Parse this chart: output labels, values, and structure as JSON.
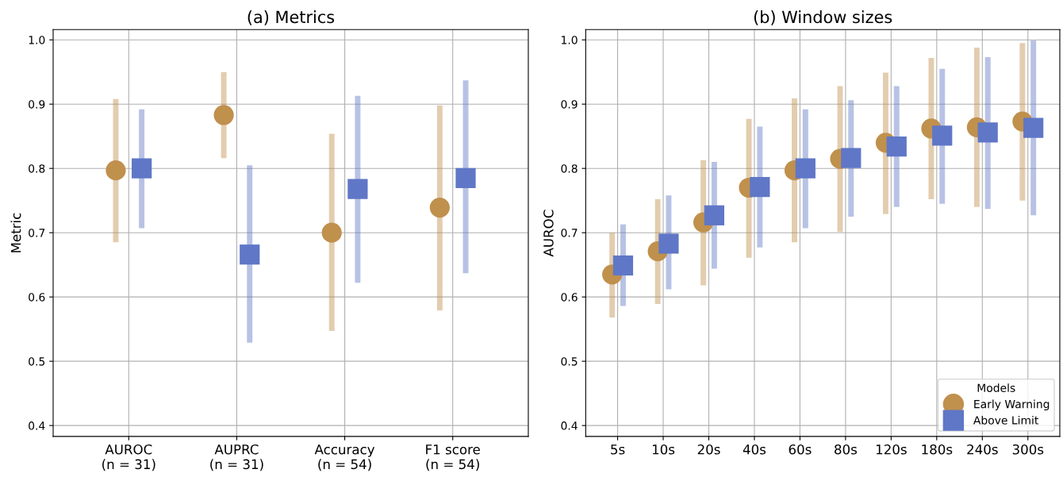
{
  "chart_data": [
    {
      "type": "scatter",
      "title": "(a) Metrics",
      "ylabel": "Metric",
      "categories": [
        "AUROC\n(n = 31)",
        "AUPRC\n(n = 31)",
        "Accuracy\n(n = 54)",
        "F1 score\n(n = 54)"
      ],
      "ylim": [
        0.383,
        1.016
      ],
      "yticks": [
        0.4,
        0.5,
        0.6,
        0.7,
        0.8,
        0.9,
        {
          "value": 1.0,
          "label": "1.0"
        }
      ],
      "grid": true,
      "series": [
        {
          "color": "#c0904d",
          "marker": "circle",
          "values": [
            0.797,
            0.883,
            0.7,
            0.739
          ],
          "errors": [
            [
              0.685,
              0.908
            ],
            [
              0.816,
              0.95
            ],
            [
              0.547,
              0.854
            ],
            [
              0.579,
              0.898
            ]
          ]
        },
        {
          "color": "#5f77c6",
          "marker": "square",
          "values": [
            0.8,
            0.666,
            0.768,
            0.785
          ],
          "errors": [
            [
              0.707,
              0.892
            ],
            [
              0.529,
              0.805
            ],
            [
              0.622,
              0.913
            ],
            [
              0.637,
              0.937
            ]
          ]
        }
      ]
    },
    {
      "type": "scatter",
      "title": "(b) Window sizes",
      "ylabel": "AUROC",
      "categories": [
        "5s",
        "10s",
        "20s",
        "40s",
        "60s",
        "80s",
        "120s",
        "180s",
        "240s",
        "300s"
      ],
      "ylim": [
        0.383,
        1.016
      ],
      "yticks": [
        0.4,
        0.5,
        0.6,
        0.7,
        0.8,
        0.9,
        {
          "value": 1.0,
          "label": "1.0"
        }
      ],
      "grid": true,
      "legend": "bottom right",
      "legend_title": "Models",
      "series": [
        {
          "name": "Early Warning",
          "color": "#c0904d",
          "marker": "circle",
          "values": [
            0.635,
            0.671,
            0.716,
            0.77,
            0.797,
            0.815,
            0.84,
            0.862,
            0.864,
            0.873
          ],
          "errors": [
            [
              0.568,
              0.7
            ],
            [
              0.589,
              0.752
            ],
            [
              0.618,
              0.813
            ],
            [
              0.661,
              0.877
            ],
            [
              0.685,
              0.909
            ],
            [
              0.701,
              0.928
            ],
            [
              0.729,
              0.949
            ],
            [
              0.752,
              0.972
            ],
            [
              0.74,
              0.988
            ],
            [
              0.75,
              0.995
            ]
          ]
        },
        {
          "name": "Above Limit",
          "color": "#5f77c6",
          "marker": "square",
          "values": [
            0.649,
            0.683,
            0.727,
            0.771,
            0.8,
            0.816,
            0.834,
            0.851,
            0.856,
            0.863
          ],
          "errors": [
            [
              0.586,
              0.713
            ],
            [
              0.612,
              0.758
            ],
            [
              0.644,
              0.81
            ],
            [
              0.677,
              0.865
            ],
            [
              0.707,
              0.892
            ],
            [
              0.725,
              0.906
            ],
            [
              0.74,
              0.928
            ],
            [
              0.745,
              0.955
            ],
            [
              0.737,
              0.973
            ],
            [
              0.727,
              0.999
            ]
          ]
        }
      ]
    }
  ]
}
